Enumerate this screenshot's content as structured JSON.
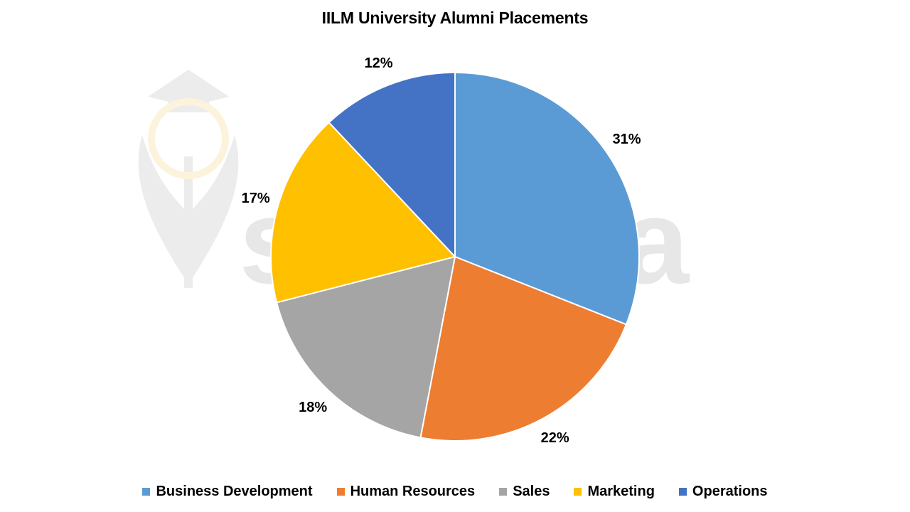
{
  "chart_data": {
    "type": "pie",
    "title": "IILM University Alumni Placements",
    "categories": [
      "Business Development",
      "Human Resources",
      "Sales",
      "Marketing",
      "Operations"
    ],
    "values": [
      31,
      22,
      18,
      17,
      12
    ],
    "value_labels": [
      "31%",
      "22%",
      "18%",
      "17%",
      "12%"
    ],
    "colors": [
      "#5B9BD5",
      "#ED7D31",
      "#A5A5A5",
      "#FFC000",
      "#4472C4"
    ],
    "start_angle_deg": 0,
    "direction": "clockwise",
    "legend_position": "bottom"
  },
  "watermark": {
    "text": "shiksha"
  }
}
